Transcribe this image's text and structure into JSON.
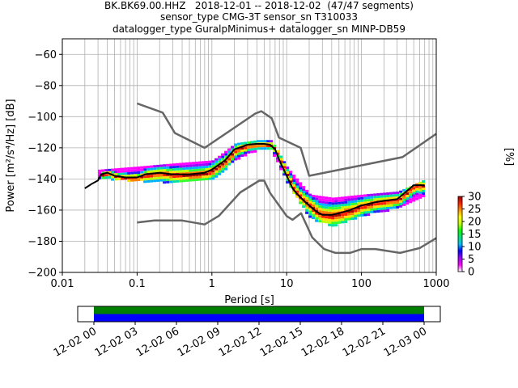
{
  "header": {
    "line1": "BK.BK69.00.HHZ   2018-12-01 -- 2018-12-02  (47/47 segments)",
    "line2": "sensor_type CMG-3T sensor_sn T310033",
    "line3": "datalogger_type GuralpMinimus+ datalogger_sn MINP-DB59"
  },
  "chart_data": {
    "type": "heatmap",
    "title": "BK.BK69.00.HHZ   2018-12-01 -- 2018-12-02  (47/47 segments)",
    "xlabel": "Period [s]",
    "ylabel": "Power [m²/s⁴/Hz] [dB]",
    "xscale": "log",
    "xlim": [
      0.01,
      1000
    ],
    "ylim": [
      -200,
      -50
    ],
    "xticks": [
      0.01,
      0.1,
      1,
      10,
      100,
      1000
    ],
    "xtick_labels": [
      "0.01",
      "0.1",
      "1",
      "10",
      "100",
      "1000"
    ],
    "yticks": [
      -200,
      -180,
      -160,
      -140,
      -120,
      -100,
      -80,
      -60
    ],
    "ytick_labels": [
      "−200",
      "−180",
      "−160",
      "−140",
      "−120",
      "−100",
      "−80",
      "−60"
    ],
    "grid": true,
    "colorbar": {
      "label": "[%]",
      "min": 0,
      "max": 30,
      "ticks": [
        0,
        5,
        10,
        15,
        20,
        25,
        30
      ],
      "tick_labels": [
        "0",
        "5",
        "10",
        "15",
        "20",
        "25",
        "30"
      ]
    },
    "series": [
      {
        "role": "new_high_noise_model",
        "color": "#666666",
        "points": [
          [
            0.1,
            -91.5
          ],
          [
            0.22,
            -97.4
          ],
          [
            0.32,
            -110.5
          ],
          [
            0.8,
            -120
          ],
          [
            3.8,
            -98
          ],
          [
            4.6,
            -96.5
          ],
          [
            6.3,
            -101
          ],
          [
            7.9,
            -113.5
          ],
          [
            15.4,
            -120
          ],
          [
            20,
            -138
          ],
          [
            354,
            -126
          ],
          [
            1000,
            -111
          ]
        ]
      },
      {
        "role": "new_low_noise_model",
        "color": "#666666",
        "points": [
          [
            0.1,
            -168
          ],
          [
            0.17,
            -166.7
          ],
          [
            0.4,
            -166.7
          ],
          [
            0.8,
            -169.2
          ],
          [
            1.24,
            -163.7
          ],
          [
            2.4,
            -148.6
          ],
          [
            4.3,
            -141.1
          ],
          [
            5,
            -141.1
          ],
          [
            6,
            -149
          ],
          [
            10,
            -163.8
          ],
          [
            12,
            -166.2
          ],
          [
            15.6,
            -162
          ],
          [
            21.9,
            -177.5
          ],
          [
            31.6,
            -185
          ],
          [
            45,
            -187.5
          ],
          [
            70,
            -187.5
          ],
          [
            101,
            -185
          ],
          [
            154,
            -185
          ],
          [
            328,
            -187.5
          ],
          [
            600,
            -184.4
          ],
          [
            1000,
            -178
          ]
        ]
      },
      {
        "role": "mode",
        "color": "#000000",
        "points": [
          [
            0.02,
            -146
          ],
          [
            0.025,
            -143
          ],
          [
            0.03,
            -141
          ],
          [
            0.033,
            -137
          ],
          [
            0.04,
            -136
          ],
          [
            0.05,
            -138
          ],
          [
            0.07,
            -139
          ],
          [
            0.1,
            -139
          ],
          [
            0.13,
            -137
          ],
          [
            0.2,
            -136
          ],
          [
            0.3,
            -137
          ],
          [
            0.5,
            -137
          ],
          [
            0.8,
            -136
          ],
          [
            1,
            -134
          ],
          [
            1.5,
            -128
          ],
          [
            2,
            -121
          ],
          [
            3,
            -118
          ],
          [
            4,
            -117.5
          ],
          [
            5,
            -117.5
          ],
          [
            6,
            -118
          ],
          [
            7,
            -121
          ],
          [
            8,
            -128
          ],
          [
            10,
            -138
          ],
          [
            12,
            -146
          ],
          [
            14,
            -150
          ],
          [
            17,
            -154
          ],
          [
            20,
            -157
          ],
          [
            25,
            -161
          ],
          [
            30,
            -163
          ],
          [
            40,
            -163
          ],
          [
            50,
            -162
          ],
          [
            70,
            -160
          ],
          [
            100,
            -157
          ],
          [
            150,
            -155
          ],
          [
            200,
            -154
          ],
          [
            300,
            -153
          ],
          [
            500,
            -144
          ],
          [
            700,
            -144
          ]
        ]
      }
    ],
    "density_bands": [
      {
        "name": "lower",
        "points": [
          [
            0.03,
            -139
          ],
          [
            0.1,
            -141
          ],
          [
            0.3,
            -142
          ],
          [
            1,
            -140
          ],
          [
            2,
            -127
          ],
          [
            4,
            -121
          ],
          [
            6,
            -121
          ],
          [
            10,
            -143
          ],
          [
            20,
            -165
          ],
          [
            40,
            -170
          ],
          [
            100,
            -163
          ],
          [
            300,
            -158
          ],
          [
            700,
            -150
          ]
        ]
      },
      {
        "name": "upper",
        "points": [
          [
            0.03,
            -134
          ],
          [
            0.1,
            -132
          ],
          [
            0.3,
            -130
          ],
          [
            1,
            -128
          ],
          [
            2,
            -117
          ],
          [
            4,
            -115
          ],
          [
            6,
            -115
          ],
          [
            10,
            -133
          ],
          [
            20,
            -150
          ],
          [
            40,
            -152
          ],
          [
            100,
            -150
          ],
          [
            300,
            -148
          ],
          [
            700,
            -140
          ]
        ]
      }
    ],
    "timeline": {
      "tick_labels": [
        "12-02 00",
        "12-02 03",
        "12-02 06",
        "12-02 09",
        "12-02 12",
        "12-02 15",
        "12-02 18",
        "12-02 21",
        "12-03 00"
      ],
      "coverage_color": "#0000ff",
      "data_color": "#008000"
    }
  }
}
